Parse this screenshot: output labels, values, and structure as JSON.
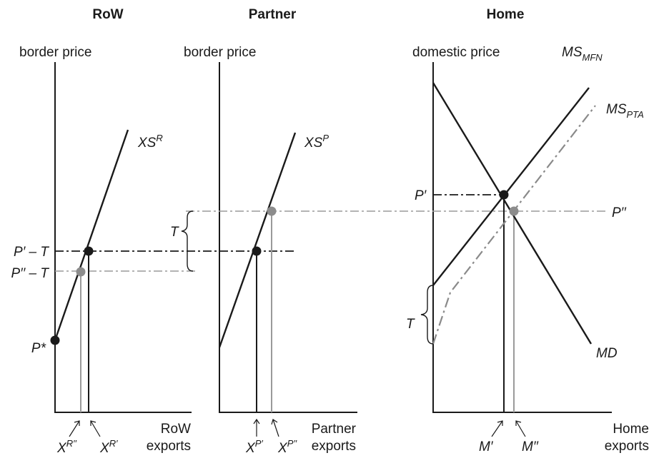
{
  "panels": {
    "row": {
      "title": "RoW",
      "y_axis": "border price",
      "x_axis_1": "RoW",
      "x_axis_2": "exports"
    },
    "partner": {
      "title": "Partner",
      "y_axis": "border price",
      "x_axis_1": "Partner",
      "x_axis_2": "exports"
    },
    "home": {
      "title": "Home",
      "y_axis": "domestic price",
      "x_axis_1": "Home",
      "x_axis_2": "exports"
    }
  },
  "curves": {
    "xs_r": {
      "base": "XS",
      "sup": "R"
    },
    "xs_p": {
      "base": "XS",
      "sup": "P"
    },
    "ms_mfn": {
      "base": "MS",
      "sub": "MFN"
    },
    "ms_pta": {
      "base": "MS",
      "sub": "PTA"
    },
    "md": {
      "label": "MD"
    }
  },
  "price_labels": {
    "p_prime_minus_t": "P′ – T",
    "p_dprime_minus_t": "P′′ – T",
    "p_star": "P*",
    "p_prime": "P′",
    "p_dprime": "P′′",
    "tariff_partner": "T",
    "tariff_home": "T"
  },
  "quantity_labels": {
    "xr_dprime": {
      "base": "X",
      "sup": "R′′"
    },
    "xr_prime": {
      "base": "X",
      "sup": "R′"
    },
    "xp_prime": {
      "base": "X",
      "sup": "P′"
    },
    "xp_dprime": {
      "base": "X",
      "sup": "P′′"
    },
    "m_prime": "M′",
    "m_dprime": "M′′"
  },
  "colors": {
    "ink": "#1a1a1a",
    "gray": "#8c8c8c"
  }
}
